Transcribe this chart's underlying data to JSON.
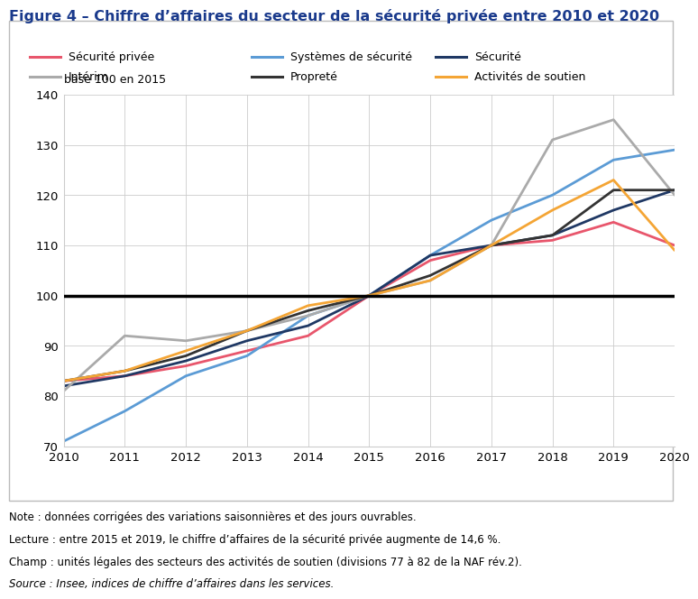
{
  "title": "Figure 4 – Chiffre d’affaires du secteur de la sécurité privée entre 2010 et 2020",
  "ylabel": "base 100 en 2015",
  "years": [
    2010,
    2011,
    2012,
    2013,
    2014,
    2015,
    2016,
    2017,
    2018,
    2019,
    2020
  ],
  "series": {
    "Sécurité privée": {
      "color": "#e8566c",
      "linewidth": 2.0,
      "values": [
        83,
        84,
        86,
        89,
        92,
        100,
        107,
        110,
        111,
        114.6,
        110
      ]
    },
    "Systèmes de sécurité": {
      "color": "#5b9bd5",
      "linewidth": 2.0,
      "values": [
        71,
        77,
        84,
        88,
        96,
        100,
        108,
        115,
        120,
        127,
        129
      ]
    },
    "Sécurité": {
      "color": "#1f3864",
      "linewidth": 2.0,
      "values": [
        82,
        84,
        87,
        91,
        94,
        100,
        108,
        110,
        112,
        117,
        121
      ]
    },
    "Intérim": {
      "color": "#aaaaaa",
      "linewidth": 2.0,
      "values": [
        81,
        92,
        91,
        93,
        96,
        100,
        103,
        110,
        131,
        135,
        120
      ]
    },
    "Propreté": {
      "color": "#333333",
      "linewidth": 2.0,
      "values": [
        83,
        85,
        88,
        93,
        97,
        100,
        104,
        110,
        112,
        121,
        121
      ]
    },
    "Activités de soutien": {
      "color": "#f4a535",
      "linewidth": 2.0,
      "values": [
        83,
        85,
        89,
        93,
        98,
        100,
        103,
        110,
        117,
        123,
        109
      ]
    }
  },
  "baseline_y": 100,
  "ylim": [
    70,
    140
  ],
  "yticks": [
    70,
    80,
    90,
    100,
    110,
    120,
    130,
    140
  ],
  "xlim": [
    2010,
    2020
  ],
  "xticks": [
    2010,
    2011,
    2012,
    2013,
    2014,
    2015,
    2016,
    2017,
    2018,
    2019,
    2020
  ],
  "background_color": "#ffffff",
  "plot_bg_color": "#ffffff",
  "grid_color": "#cccccc",
  "title_color": "#1a3a8c",
  "note_lines": [
    "Note : données corrigées des variations saisonnières et des jours ouvrables.",
    "Lecture : entre 2015 et 2019, le chiffre d’affaires de la sécurité privée augmente de 14,6 %.",
    "Champ : unités légales des secteurs des activités de soutien (divisions 77 à 82 de la NAF rév.2).",
    "Source : Insee, indices de chiffre d’affaires dans les services."
  ],
  "legend_row1": [
    "Sécurité privée",
    "Systèmes de sécurité",
    "Sécurité"
  ],
  "legend_row2": [
    "Intérim",
    "Propreté",
    "Activités de soutien"
  ]
}
